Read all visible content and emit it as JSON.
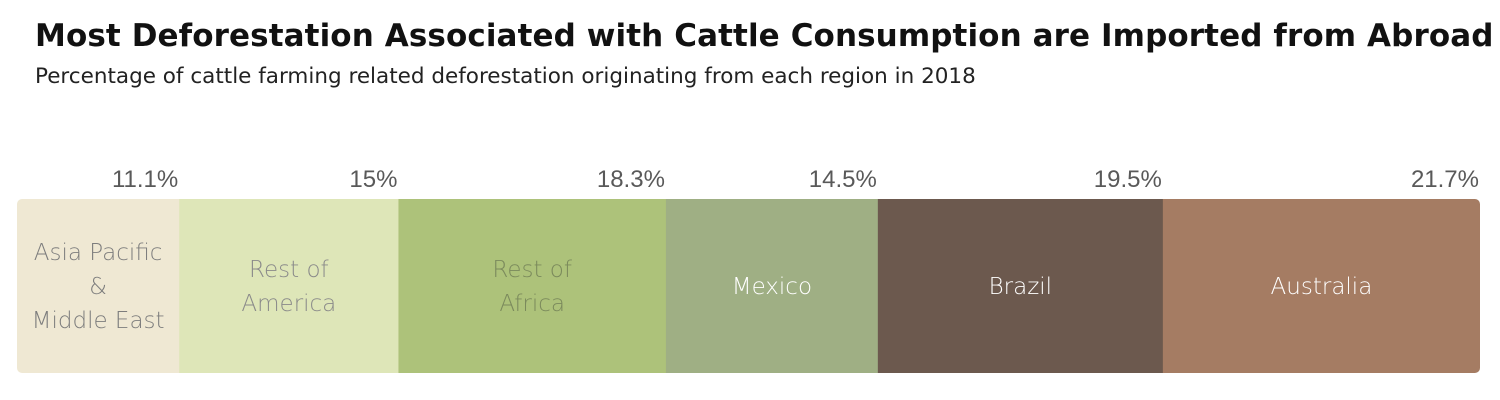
{
  "title": "Most Deforestation Associated with Cattle Consumption are Imported from Abroad",
  "subtitle": "Percentage of cattle farming related deforestation originating from each region in 2018",
  "chart_data": {
    "type": "bar",
    "orientation": "horizontal-stacked-100",
    "title": "Most Deforestation Associated with Cattle Consumption are Imported from Abroad",
    "subtitle": "Percentage of cattle farming related deforestation originating from each region in 2018",
    "unit": "%",
    "categories": [
      "Asia Pacific & Middle East",
      "Rest of America",
      "Rest of Africa",
      "Mexico",
      "Brazil",
      "Australia"
    ],
    "values": [
      11.1,
      15,
      18.3,
      14.5,
      19.5,
      21.7
    ],
    "value_labels": [
      "11.1%",
      "15%",
      "18.3%",
      "14.5%",
      "19.5%",
      "21.7%"
    ],
    "segment_labels": [
      [
        "Asia Pacific",
        "&",
        "Middle East"
      ],
      [
        "Rest of",
        "America"
      ],
      [
        "Rest of",
        "Africa"
      ],
      [
        "Mexico"
      ],
      [
        "Brazil"
      ],
      [
        "Australia"
      ]
    ],
    "colors": [
      "#efe8d3",
      "#dee6b8",
      "#adc27a",
      "#9faf84",
      "#6c594e",
      "#a57c63"
    ],
    "text_colors": [
      "#7d7d7d",
      "#8a8a8a",
      "#7b8a5c",
      "#ffffff",
      "#ffffff",
      "#ffffff"
    ],
    "legend": "none",
    "grid": false
  }
}
